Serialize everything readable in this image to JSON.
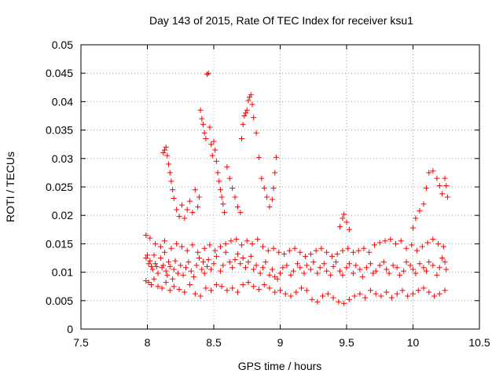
{
  "chart_data": {
    "type": "scatter",
    "title": "Day 143 of 2015, Rate Of TEC Index for receiver ksu1",
    "xlabel": "GPS time / hours",
    "ylabel": "ROTI / TECUs",
    "xlim": [
      7.5,
      10.5
    ],
    "ylim": [
      0,
      0.05
    ],
    "x_ticks": [
      "7.5",
      "8",
      "8.5",
      "9",
      "9.5",
      "10",
      "10.5"
    ],
    "y_ticks": [
      "0",
      "0.005",
      "0.01",
      "0.015",
      "0.02",
      "0.025",
      "0.03",
      "0.035",
      "0.04",
      "0.045",
      "0.05"
    ],
    "grid": true,
    "marker": "plus",
    "color": "#ff0000",
    "series": [
      {
        "x": [
          7.99,
          8.0,
          8.01,
          8.02,
          8.03,
          8.04,
          8.05,
          8.06,
          8.07,
          8.08,
          8.1,
          8.11,
          8.12,
          8.13,
          8.14,
          8.15,
          8.16,
          8.17,
          8.19,
          8.2,
          8.21,
          8.23,
          8.25,
          8.27,
          8.29,
          8.31,
          8.33,
          8.35,
          8.37,
          8.39,
          8.41,
          8.42,
          8.43,
          8.45,
          8.46,
          8.48,
          8.5,
          8.52,
          8.55,
          8.57,
          8.59,
          8.62,
          8.64,
          8.66,
          8.68,
          8.7,
          8.72,
          8.74,
          8.76,
          8.78,
          8.8,
          8.82,
          8.85,
          8.87,
          8.89,
          8.92,
          8.94,
          8.96,
          8.98,
          9.0,
          9.02,
          9.05,
          9.08,
          9.1,
          9.13,
          9.15,
          9.18,
          9.2,
          9.23,
          9.25,
          9.28,
          9.3,
          9.33,
          9.35,
          9.38,
          9.4,
          9.42,
          9.45,
          9.47,
          9.5,
          9.52,
          9.55,
          9.57,
          9.6,
          9.62,
          9.65,
          9.68,
          9.7,
          9.72,
          9.75,
          9.78,
          9.8,
          9.82,
          9.85,
          9.88,
          9.9,
          9.93,
          9.95,
          9.98,
          10.0,
          10.02,
          10.05,
          10.08,
          10.1,
          10.12,
          10.15,
          10.18,
          10.2,
          10.22,
          10.24,
          10.25,
          7.99,
          8.01,
          8.03,
          8.05,
          8.08,
          8.11,
          8.14,
          8.17,
          8.2,
          8.24,
          8.28,
          8.32,
          8.36,
          8.4,
          8.44,
          8.48,
          8.52,
          8.56,
          8.6,
          8.64,
          8.68,
          8.72,
          8.76,
          8.8,
          8.84,
          8.88,
          8.92,
          8.96,
          9.0,
          9.04,
          9.08,
          9.12,
          9.16,
          9.2,
          9.24,
          9.28,
          9.32,
          9.36,
          9.4,
          9.44,
          9.48,
          9.52,
          9.56,
          9.6,
          9.64,
          9.68,
          9.72,
          9.76,
          9.8,
          9.84,
          9.88,
          9.92,
          9.96,
          10.0,
          10.04,
          10.08,
          10.12,
          10.16,
          10.2,
          10.24,
          7.99,
          8.02,
          8.06,
          8.1,
          8.13,
          8.18,
          8.22,
          8.26,
          8.3,
          8.34,
          8.38,
          8.43,
          8.47,
          8.51,
          8.55,
          8.59,
          8.63,
          8.67,
          8.71,
          8.75,
          8.79,
          8.83,
          8.87,
          8.91,
          8.95,
          8.99,
          9.03,
          9.07,
          9.11,
          9.15,
          9.19,
          9.23,
          9.27,
          9.31,
          9.35,
          9.39,
          9.43,
          9.47,
          9.51,
          9.55,
          9.59,
          9.63,
          9.67,
          9.71,
          9.75,
          9.79,
          9.83,
          9.87,
          9.91,
          9.95,
          9.99,
          10.03,
          10.07,
          10.11,
          10.15,
          10.19,
          10.23,
          8.12,
          8.13,
          8.14,
          8.15,
          8.16,
          8.17,
          8.18,
          8.19,
          8.2,
          8.22,
          8.24,
          8.26,
          8.28,
          8.3,
          8.32,
          8.34,
          8.36,
          8.38,
          8.39,
          8.4,
          8.41,
          8.42,
          8.43,
          8.44,
          8.45,
          8.46,
          8.47,
          8.48,
          8.49,
          8.5,
          8.51,
          8.52,
          8.53,
          8.54,
          8.55,
          8.56,
          8.57,
          8.58,
          8.6,
          8.62,
          8.64,
          8.66,
          8.68,
          8.7,
          8.71,
          8.72,
          8.73,
          8.74,
          8.75,
          8.76,
          8.77,
          8.78,
          8.79,
          8.8,
          8.82,
          8.84,
          8.86,
          8.88,
          8.9,
          8.92,
          8.94,
          8.95,
          8.96,
          8.97,
          9.45,
          9.47,
          9.48,
          9.5,
          9.52,
          10.0,
          10.02,
          10.05,
          10.08,
          10.1,
          10.12,
          10.15,
          10.18,
          10.2,
          10.22,
          10.24,
          10.25,
          10.26
        ],
        "y": [
          0.0125,
          0.013,
          0.0115,
          0.012,
          0.011,
          0.0105,
          0.013,
          0.0115,
          0.011,
          0.0098,
          0.0125,
          0.0108,
          0.0112,
          0.0135,
          0.0102,
          0.0095,
          0.0118,
          0.011,
          0.0088,
          0.0105,
          0.012,
          0.0098,
          0.0112,
          0.0095,
          0.0108,
          0.0118,
          0.0102,
          0.0092,
          0.0112,
          0.0125,
          0.0105,
          0.0118,
          0.0098,
          0.011,
          0.0122,
          0.0105,
          0.0115,
          0.0128,
          0.0102,
          0.0112,
          0.0135,
          0.0118,
          0.0108,
          0.0122,
          0.0132,
          0.0115,
          0.0125,
          0.0108,
          0.0118,
          0.0128,
          0.0105,
          0.0112,
          0.0098,
          0.0108,
          0.0118,
          0.0095,
          0.0105,
          0.0092,
          0.0088,
          0.0098,
          0.0108,
          0.0112,
          0.0095,
          0.0102,
          0.0115,
          0.0108,
          0.0098,
          0.0112,
          0.0105,
          0.0118,
          0.0098,
          0.0108,
          0.0115,
          0.0102,
          0.0095,
          0.011,
          0.0118,
          0.0102,
          0.0095,
          0.0108,
          0.0115,
          0.0098,
          0.0112,
          0.0105,
          0.0092,
          0.0108,
          0.0115,
          0.0098,
          0.0102,
          0.0112,
          0.0118,
          0.0105,
          0.0098,
          0.0112,
          0.0108,
          0.0095,
          0.0102,
          0.0118,
          0.0112,
          0.0105,
          0.0098,
          0.0115,
          0.0108,
          0.0102,
          0.0118,
          0.0112,
          0.0095,
          0.0108,
          0.0125,
          0.0118,
          0.0105,
          0.0085,
          0.0082,
          0.0078,
          0.0088,
          0.0075,
          0.0072,
          0.0082,
          0.0068,
          0.0075,
          0.007,
          0.0065,
          0.0078,
          0.0062,
          0.0058,
          0.0072,
          0.0068,
          0.0078,
          0.0075,
          0.0068,
          0.0072,
          0.0065,
          0.0078,
          0.0082,
          0.0075,
          0.007,
          0.0078,
          0.0072,
          0.0065,
          0.0068,
          0.0062,
          0.0058,
          0.0065,
          0.0072,
          0.0068,
          0.0052,
          0.0048,
          0.0058,
          0.0062,
          0.0055,
          0.0048,
          0.0045,
          0.0052,
          0.0058,
          0.0062,
          0.0055,
          0.0068,
          0.0062,
          0.0058,
          0.0065,
          0.0055,
          0.0062,
          0.0068,
          0.0058,
          0.0062,
          0.0068,
          0.0072,
          0.0065,
          0.0058,
          0.0062,
          0.0068,
          0.0165,
          0.016,
          0.015,
          0.0145,
          0.0155,
          0.0142,
          0.015,
          0.0145,
          0.0138,
          0.0148,
          0.0135,
          0.0142,
          0.0148,
          0.0138,
          0.0145,
          0.015,
          0.0155,
          0.0158,
          0.0148,
          0.0155,
          0.015,
          0.0158,
          0.0145,
          0.0138,
          0.0142,
          0.0135,
          0.0132,
          0.0138,
          0.0142,
          0.0135,
          0.0128,
          0.0132,
          0.0138,
          0.0142,
          0.0135,
          0.0128,
          0.0132,
          0.0138,
          0.0142,
          0.0135,
          0.0138,
          0.0142,
          0.0135,
          0.0148,
          0.0152,
          0.0155,
          0.0158,
          0.015,
          0.0155,
          0.0142,
          0.0148,
          0.0138,
          0.0145,
          0.0152,
          0.0158,
          0.015,
          0.0145,
          0.031,
          0.0315,
          0.032,
          0.0305,
          0.029,
          0.0275,
          0.026,
          0.0245,
          0.023,
          0.021,
          0.0198,
          0.0218,
          0.0195,
          0.021,
          0.0225,
          0.0205,
          0.0245,
          0.0215,
          0.0232,
          0.0385,
          0.037,
          0.036,
          0.0345,
          0.0335,
          0.0448,
          0.045,
          0.0355,
          0.0325,
          0.0305,
          0.033,
          0.0315,
          0.0295,
          0.0275,
          0.026,
          0.0245,
          0.0232,
          0.022,
          0.0205,
          0.0285,
          0.0265,
          0.0248,
          0.0232,
          0.0215,
          0.0205,
          0.0335,
          0.036,
          0.0375,
          0.038,
          0.0385,
          0.0402,
          0.0408,
          0.0412,
          0.0395,
          0.0372,
          0.0345,
          0.0302,
          0.0265,
          0.0248,
          0.0232,
          0.0215,
          0.0228,
          0.0248,
          0.0275,
          0.0302,
          0.018,
          0.0195,
          0.0202,
          0.0188,
          0.0175,
          0.0178,
          0.0195,
          0.0208,
          0.022,
          0.0248,
          0.0275,
          0.0278,
          0.0265,
          0.0252,
          0.0238,
          0.0265,
          0.0252,
          0.0232
        ]
      }
    ]
  }
}
